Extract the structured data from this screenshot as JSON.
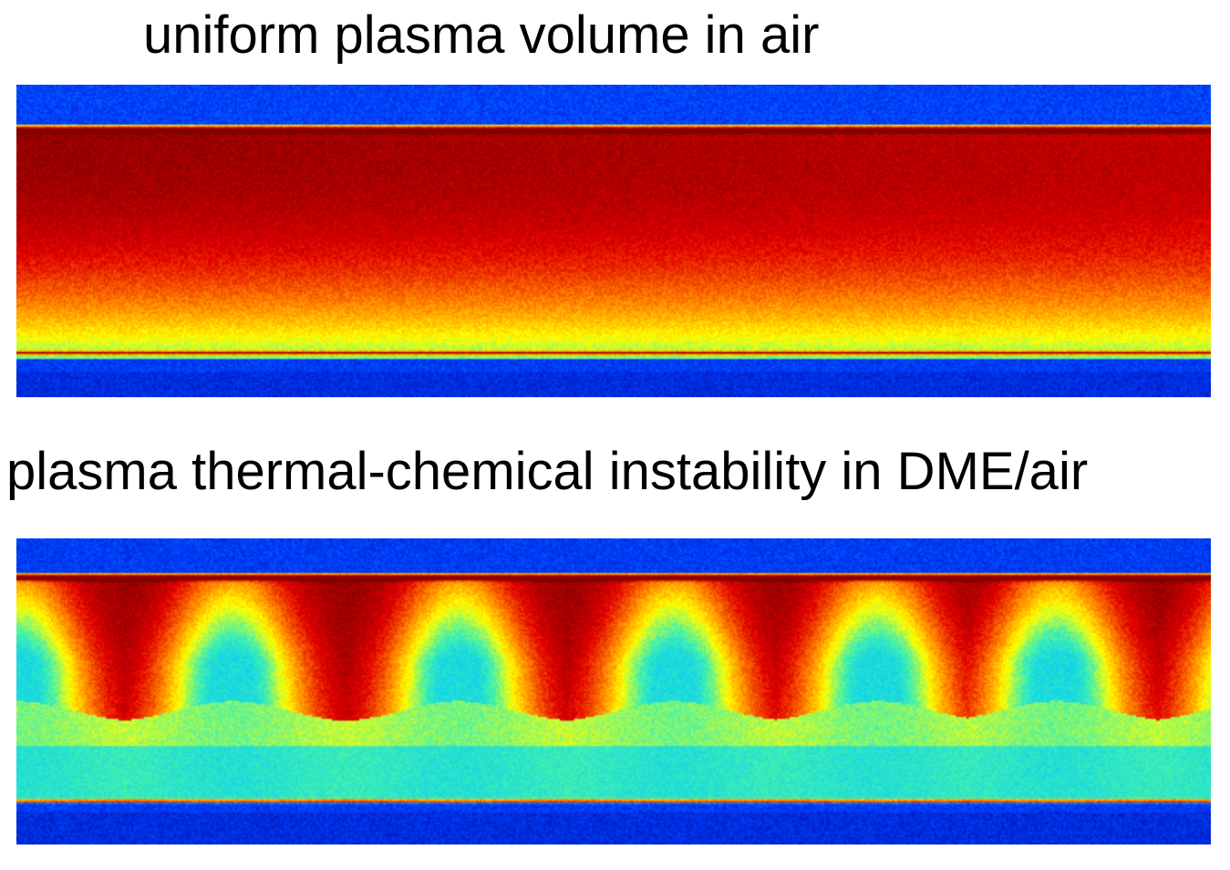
{
  "captions": {
    "top": "uniform plasma volume in air",
    "bottom": "plasma thermal-chemical instability in DME/air"
  },
  "colormap": {
    "name": "jet",
    "stops": [
      "#00008f",
      "#0040ff",
      "#00c8ff",
      "#40f0b0",
      "#ffff00",
      "#ff8000",
      "#e00000",
      "#800000"
    ]
  },
  "panels": {
    "top": {
      "image": "uniform-plasma-false-color",
      "pattern": "uniform"
    },
    "bottom": {
      "image": "plasma-instability-false-color",
      "pattern": "periodic-lobes",
      "lobe_count": 6
    }
  }
}
